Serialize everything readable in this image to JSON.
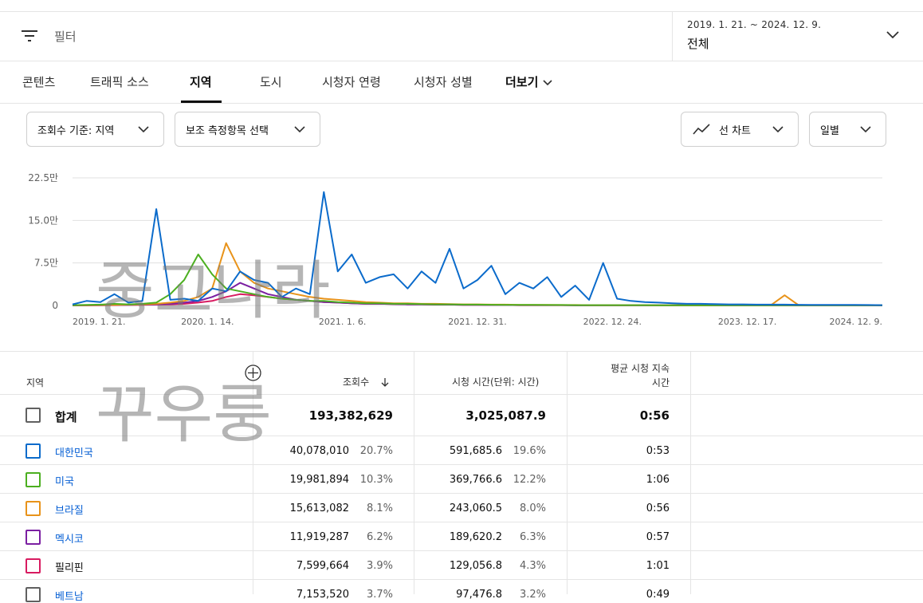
{
  "topbar": {
    "filter_placeholder": "필터",
    "date_range": "2019. 1. 21. ~ 2024. 12. 9.",
    "date_period": "전체"
  },
  "tabs": [
    {
      "label": "콘텐츠"
    },
    {
      "label": "트래픽 소스"
    },
    {
      "label": "지역",
      "active": true
    },
    {
      "label": "도시"
    },
    {
      "label": "시청자 연령"
    },
    {
      "label": "시청자 성별"
    },
    {
      "label": "더보기"
    }
  ],
  "controls": {
    "metric_selector": "조회수 기준: 지역",
    "secondary_selector": "보조 측정항목 선택",
    "chart_type": "선 차트",
    "granularity": "일별"
  },
  "chart_data": {
    "type": "line",
    "y_ticks": [
      "22.5만",
      "15.0만",
      "7.5만",
      "0"
    ],
    "ylim": [
      0,
      225000
    ],
    "x_ticks": [
      "2019. 1. 21.",
      "2020. 1. 14.",
      "2021. 1. 6.",
      "2021. 12. 31.",
      "2022. 12. 24.",
      "2023. 12. 17.",
      "2024. 12. 9."
    ],
    "grid": true,
    "series": [
      {
        "name": "대한민국",
        "color": "#0b6bcb",
        "values": [
          2000,
          8000,
          6000,
          20000,
          5000,
          8000,
          170000,
          10000,
          12000,
          8000,
          30000,
          25000,
          60000,
          45000,
          40000,
          15000,
          30000,
          20000,
          200000,
          60000,
          90000,
          40000,
          50000,
          55000,
          30000,
          60000,
          40000,
          100000,
          30000,
          45000,
          70000,
          20000,
          40000,
          30000,
          50000,
          15000,
          35000,
          10000,
          75000,
          12000,
          8000,
          6000,
          5000,
          4000,
          3000,
          3000,
          2500,
          2000,
          2000,
          1500,
          1500,
          1500,
          1200,
          1000,
          1000,
          1000,
          1000,
          800,
          500
        ]
      },
      {
        "name": "미국",
        "color": "#4caf20",
        "values": [
          500,
          1000,
          1500,
          3000,
          2000,
          3000,
          5000,
          20000,
          45000,
          90000,
          55000,
          30000,
          25000,
          20000,
          15000,
          12000,
          10000,
          8000,
          8000,
          6000,
          5000,
          4000,
          4000,
          3000,
          3000,
          2500,
          2000,
          2000,
          1500,
          1500,
          1200,
          1000,
          1000,
          1000,
          800,
          800,
          600,
          600,
          500,
          500,
          500,
          500,
          400,
          400,
          400,
          400,
          300,
          300,
          300,
          300,
          300,
          300,
          300,
          300,
          300,
          300,
          300,
          300,
          300
        ]
      },
      {
        "name": "브라질",
        "color": "#e8931a",
        "values": [
          300,
          500,
          800,
          1000,
          1500,
          2000,
          3000,
          5000,
          8000,
          15000,
          30000,
          110000,
          60000,
          40000,
          30000,
          25000,
          20000,
          15000,
          12000,
          10000,
          8000,
          6000,
          5000,
          4000,
          4000,
          3000,
          3000,
          2500,
          2000,
          2000,
          1500,
          1500,
          1000,
          1000,
          1000,
          800,
          800,
          600,
          600,
          500,
          500,
          500,
          400,
          400,
          400,
          400,
          300,
          300,
          300,
          300,
          300,
          18000,
          500,
          300,
          300,
          300,
          300,
          300,
          300
        ]
      },
      {
        "name": "멕시코",
        "color": "#7b1fa2",
        "values": [
          200,
          300,
          500,
          800,
          1000,
          1500,
          2000,
          3000,
          5000,
          8000,
          15000,
          25000,
          40000,
          30000,
          20000,
          15000,
          10000,
          8000,
          6000,
          5000,
          4000,
          3000,
          3000,
          2500,
          2000,
          2000,
          1500,
          1500,
          1000,
          1000,
          800,
          800,
          600,
          600,
          500,
          500,
          400,
          400,
          400,
          300,
          300,
          300,
          300,
          300,
          300,
          300,
          300,
          300,
          300,
          300,
          300,
          300,
          300,
          300,
          300,
          300,
          300,
          300,
          300
        ]
      },
      {
        "name": "필리핀",
        "color": "#d81b60",
        "values": [
          100,
          200,
          300,
          500,
          800,
          1000,
          1500,
          2000,
          3000,
          5000,
          8000,
          15000,
          20000,
          18000,
          15000,
          12000,
          10000,
          8000,
          6000,
          5000,
          4000,
          3000,
          3000,
          2500,
          2000,
          2000,
          1500,
          1500,
          1000,
          1000,
          800,
          800,
          600,
          600,
          500,
          500,
          400,
          400,
          400,
          300,
          300,
          300,
          300,
          300,
          300,
          300,
          300,
          300,
          300,
          300,
          300,
          300,
          300,
          300,
          300,
          300,
          300,
          300,
          300
        ]
      }
    ]
  },
  "table": {
    "headers": {
      "region": "지역",
      "views": "조회수",
      "watch_time": "시청 시간(단위: 시간)",
      "avg_duration_line1": "평균 시청 지속",
      "avg_duration_line2": "시간"
    },
    "total": {
      "label": "합계",
      "views": "193,382,629",
      "watch_time": "3,025,087.9",
      "avg_duration": "0:56"
    },
    "rows": [
      {
        "name": "대한민국",
        "color": "#0b6bcb",
        "views": "40,078,010",
        "views_pct": "20.7%",
        "watch_time": "591,685.6",
        "watch_pct": "19.6%",
        "avg": "0:53"
      },
      {
        "name": "미국",
        "color": "#4caf20",
        "views": "19,981,894",
        "views_pct": "10.3%",
        "watch_time": "369,766.6",
        "watch_pct": "12.2%",
        "avg": "1:06"
      },
      {
        "name": "브라질",
        "color": "#e8931a",
        "views": "15,613,082",
        "views_pct": "8.1%",
        "watch_time": "243,060.5",
        "watch_pct": "8.0%",
        "avg": "0:56"
      },
      {
        "name": "멕시코",
        "color": "#7b1fa2",
        "views": "11,919,287",
        "views_pct": "6.2%",
        "watch_time": "189,620.2",
        "watch_pct": "6.3%",
        "avg": "0:57"
      },
      {
        "name": "필리핀",
        "color": "#d81b60",
        "views": "7,599,664",
        "views_pct": "3.9%",
        "watch_time": "129,056.8",
        "watch_pct": "4.3%",
        "avg": "1:01"
      },
      {
        "name": "베트남",
        "color": "#606060",
        "views": "7,153,520",
        "views_pct": "3.7%",
        "watch_time": "97,476.8",
        "watch_pct": "3.2%",
        "avg": "0:49"
      }
    ]
  },
  "watermark": {
    "line1": "중고나라",
    "line2": "꾸우룽"
  }
}
